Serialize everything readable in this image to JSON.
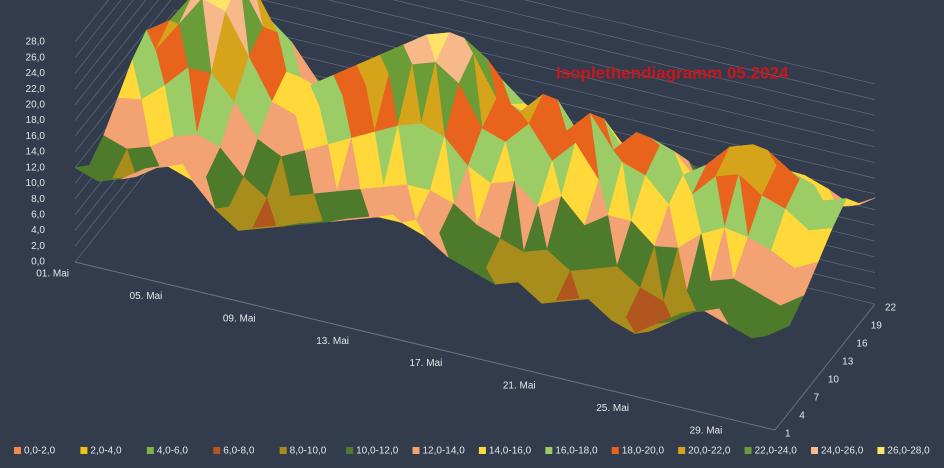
{
  "chart_data": {
    "type": "surface",
    "title": "Isoplethendiagramm 05.2024",
    "categories": [
      "01. Mai",
      null,
      null,
      null,
      "05. Mai",
      null,
      null,
      null,
      "09. Mai",
      null,
      null,
      null,
      "13. Mai",
      null,
      null,
      null,
      "17. Mai",
      null,
      null,
      null,
      "21. Mai",
      null,
      null,
      null,
      "25. Mai",
      null,
      null,
      null,
      "29. Mai",
      null,
      null
    ],
    "series": [
      {
        "name": "1",
        "values": [
          12,
          11,
          12,
          14,
          15,
          14,
          11,
          9,
          10,
          11,
          12,
          13,
          14,
          15,
          15,
          14,
          12,
          11,
          10,
          11,
          9,
          10,
          11,
          9,
          8,
          10,
          12,
          13,
          12,
          11,
          13
        ]
      },
      {
        "name": "4",
        "values": [
          10,
          9,
          10,
          12,
          13,
          12,
          9,
          7,
          8,
          9,
          10,
          11,
          12,
          13,
          13,
          12,
          10,
          9,
          8,
          9,
          7,
          8,
          9,
          7,
          6,
          8,
          10,
          11,
          10,
          9,
          11
        ]
      },
      {
        "name": "7",
        "values": [
          11.5,
          10.5,
          11.5,
          13.5,
          14.5,
          13.5,
          10.5,
          8.5,
          9.5,
          10.5,
          11.5,
          12.5,
          13.5,
          14.5,
          14.5,
          13.5,
          11.5,
          10.5,
          9.5,
          10.5,
          8.5,
          9.5,
          10.5,
          8.5,
          7.5,
          9.5,
          11.5,
          12.5,
          11.5,
          10.5,
          12.5
        ]
      },
      {
        "name": "10",
        "values": [
          14,
          14.5,
          17,
          20,
          20,
          17,
          13,
          11.5,
          13,
          14.5,
          16,
          17.5,
          19,
          20,
          19,
          16,
          14.5,
          15.5,
          13,
          15,
          12,
          14,
          14,
          11.5,
          12,
          14.5,
          16,
          15.5,
          14.5,
          13,
          14.5
        ]
      },
      {
        "name": "13",
        "values": [
          16.5,
          18.5,
          22.5,
          26.5,
          25.5,
          20.5,
          15.5,
          14.5,
          16.5,
          18.5,
          20.5,
          22.5,
          24.5,
          25.5,
          23.5,
          18.5,
          17.5,
          20.5,
          16.5,
          19.5,
          15.5,
          18.5,
          17.5,
          14.5,
          16.5,
          19.5,
          20.5,
          18.5,
          17.5,
          15.5,
          16.5
        ]
      },
      {
        "name": "16",
        "values": [
          18,
          20,
          24,
          28,
          27,
          22,
          17,
          16,
          18,
          20,
          22,
          24,
          26,
          27,
          25,
          20,
          19,
          22,
          18,
          21,
          17,
          20,
          19,
          16,
          18,
          21,
          22,
          20,
          19,
          17,
          18
        ]
      },
      {
        "name": "19",
        "values": [
          15,
          17,
          21,
          25,
          24,
          19,
          14,
          13,
          15,
          17,
          19,
          21,
          23,
          24,
          22,
          17,
          16,
          19,
          15,
          18,
          14,
          17,
          16,
          13,
          15,
          18,
          19,
          17,
          16,
          14,
          15
        ]
      },
      {
        "name": "22",
        "values": [
          12.8,
          12.9,
          14.9,
          17.6,
          17.9,
          15.5,
          11.8,
          10.2,
          11.5,
          12.9,
          14.2,
          15.6,
          16.9,
          17.9,
          17.2,
          14.8,
          13.2,
          13.6,
          11.5,
          13.2,
          10.5,
          12.2,
          12.5,
          10.2,
          10.2,
          12.6,
          14.2,
          14.2,
          13.2,
          11.8,
          13.5
        ]
      }
    ],
    "zlim": [
      0,
      28
    ],
    "zticks": [
      {
        "value": 0,
        "label": "0,0"
      },
      {
        "value": 2,
        "label": "2,0"
      },
      {
        "value": 4,
        "label": "4,0"
      },
      {
        "value": 6,
        "label": "6,0"
      },
      {
        "value": 8,
        "label": "8,0"
      },
      {
        "value": 10,
        "label": "10,0"
      },
      {
        "value": 12,
        "label": "12,0"
      },
      {
        "value": 14,
        "label": "14,0"
      },
      {
        "value": 16,
        "label": "16,0"
      },
      {
        "value": 18,
        "label": "18,0"
      },
      {
        "value": 20,
        "label": "20,0"
      },
      {
        "value": 22,
        "label": "22,0"
      },
      {
        "value": 24,
        "label": "24,0"
      },
      {
        "value": 26,
        "label": "26,0"
      },
      {
        "value": 28,
        "label": "28,0"
      }
    ],
    "legend": [
      {
        "name": "0,0-2,0",
        "color": "#f0894a"
      },
      {
        "name": "2,0-4,0",
        "color": "#f2c014"
      },
      {
        "name": "4,0-6,0",
        "color": "#7cb342"
      },
      {
        "name": "6,0-8,0",
        "color": "#b0561e"
      },
      {
        "name": "8,0-10,0",
        "color": "#a88c1c"
      },
      {
        "name": "10,0-12,0",
        "color": "#4e7a2c"
      },
      {
        "name": "12,0-14,0",
        "color": "#f3a273"
      },
      {
        "name": "14,0-16,0",
        "color": "#ffd83a"
      },
      {
        "name": "16,0-18,0",
        "color": "#9ccc65"
      },
      {
        "name": "18,0-20,0",
        "color": "#e8631c"
      },
      {
        "name": "20,0-22,0",
        "color": "#d6a41a"
      },
      {
        "name": "22,0-24,0",
        "color": "#6a9c38"
      },
      {
        "name": "24,0-26,0",
        "color": "#f7b88a"
      },
      {
        "name": "26,0-28,0",
        "color": "#ffe26a"
      }
    ],
    "grid": true
  }
}
